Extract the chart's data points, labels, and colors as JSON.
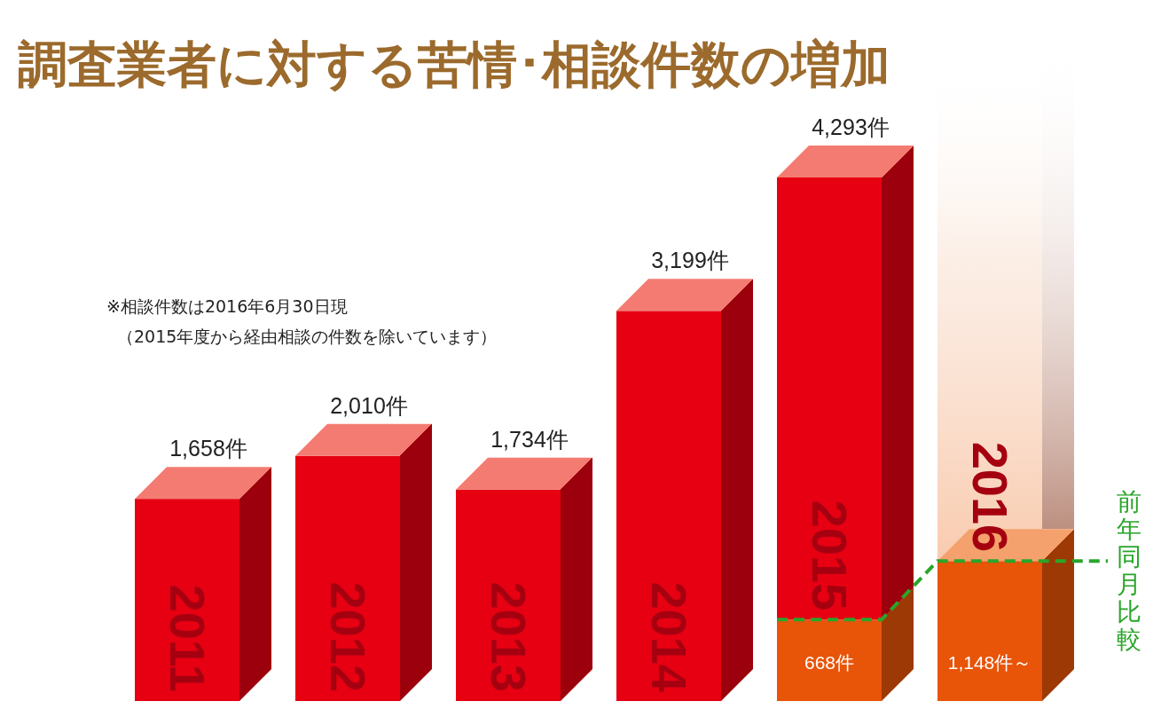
{
  "chart_data": {
    "type": "bar",
    "stacked": true,
    "title": "調査業者に対する苦情･相談件数の増加",
    "categories": [
      "2011",
      "2012",
      "2013",
      "2014",
      "2015",
      "2016"
    ],
    "series": [
      {
        "color": "#e85408",
        "values": [
          null,
          null,
          null,
          null,
          668,
          1148
        ],
        "value_labels": [
          null,
          null,
          null,
          null,
          "668件",
          "1,148件～"
        ]
      },
      {
        "color": "#e60012",
        "values": [
          1658,
          2010,
          1734,
          3199,
          3625,
          null
        ]
      }
    ],
    "totals": [
      "1,658件",
      "2,010件",
      "1,734件",
      "3,199件",
      "4,293件",
      null
    ],
    "annotations": [
      "※相談件数は2016年6月30日現",
      "（2015年度から経由相談の件数を除いています）",
      "前年同月比較"
    ]
  }
}
